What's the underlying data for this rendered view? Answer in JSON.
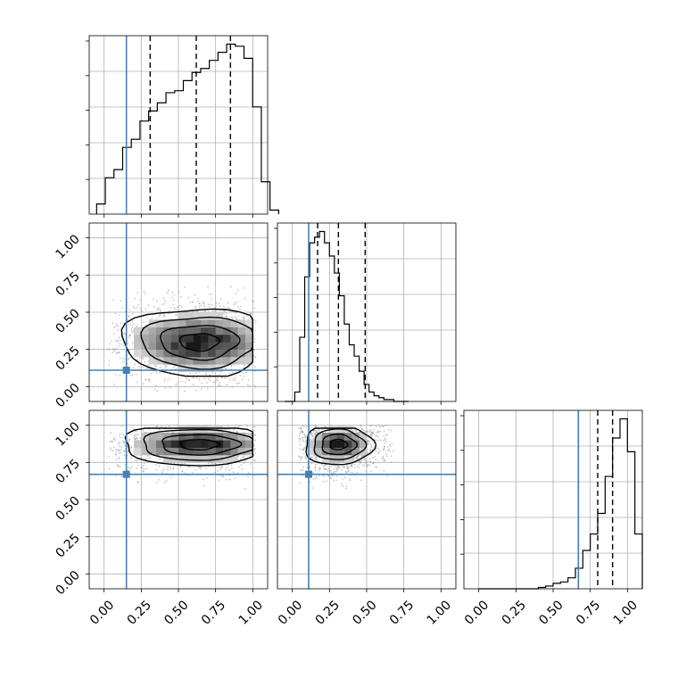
{
  "chart_data": {
    "type": "corner",
    "grid": true,
    "truth_color": "#4682b4",
    "hist_color": "#000000",
    "parameters": [
      {
        "truth": 0.15,
        "quantiles": [
          0.31,
          0.62,
          0.85
        ],
        "range": [
          -0.1,
          1.1
        ]
      },
      {
        "truth": 0.11,
        "quantiles": [
          0.17,
          0.31,
          0.49
        ],
        "range": [
          -0.1,
          1.1
        ]
      },
      {
        "truth": 0.67,
        "quantiles": [
          0.67,
          0.8,
          0.9
        ],
        "range": [
          -0.1,
          1.1
        ]
      }
    ],
    "tick_labels": [
      "0.00",
      "0.25",
      "0.50",
      "0.75",
      "1.00"
    ],
    "tick_values": [
      0.0,
      0.25,
      0.5,
      0.75,
      1.0
    ],
    "histograms": [
      {
        "bin_start": -0.05,
        "bin_width": 0.0583,
        "counts": [
          0.05,
          0.18,
          0.22,
          0.33,
          0.37,
          0.46,
          0.51,
          0.55,
          0.6,
          0.61,
          0.66,
          0.7,
          0.72,
          0.76,
          0.8,
          0.84,
          0.83,
          0.77,
          0.53,
          0.16,
          0.02
        ]
      },
      {
        "bin_start": -0.05,
        "bin_width": 0.0333,
        "counts": [
          0.0,
          0.0,
          0.05,
          0.34,
          0.66,
          0.84,
          0.87,
          0.9,
          0.84,
          0.77,
          0.68,
          0.56,
          0.41,
          0.3,
          0.24,
          0.16,
          0.09,
          0.05,
          0.03,
          0.02,
          0.01,
          0.01,
          0.0,
          0.0,
          0.0
        ]
      },
      {
        "bin_start": 0.0,
        "bin_width": 0.05,
        "counts": [
          0.0,
          0.0,
          0.0,
          0.0,
          0.0,
          0.0,
          0.0,
          0.0,
          0.01,
          0.02,
          0.04,
          0.05,
          0.08,
          0.15,
          0.28,
          0.4,
          0.55,
          0.82,
          1.1,
          1.24,
          1.0,
          0.4
        ]
      }
    ],
    "joint": [
      {
        "x": 1,
        "y": 0,
        "mean": [
          0.64,
          0.3
        ],
        "sd": [
          0.25,
          0.1
        ],
        "extent_x": [
          0.08,
          1.0
        ],
        "extent_y": [
          0.05,
          0.66
        ]
      },
      {
        "x": 2,
        "y": 0,
        "mean": [
          0.64,
          0.87
        ],
        "sd": [
          0.25,
          0.06
        ],
        "extent_x": [
          0.08,
          1.0
        ],
        "extent_y": [
          0.58,
          0.98
        ]
      },
      {
        "x": 2,
        "y": 1,
        "mean": [
          0.31,
          0.87
        ],
        "sd": [
          0.11,
          0.06
        ],
        "extent_x": [
          0.09,
          0.66
        ],
        "extent_y": [
          0.58,
          0.98
        ]
      }
    ]
  }
}
